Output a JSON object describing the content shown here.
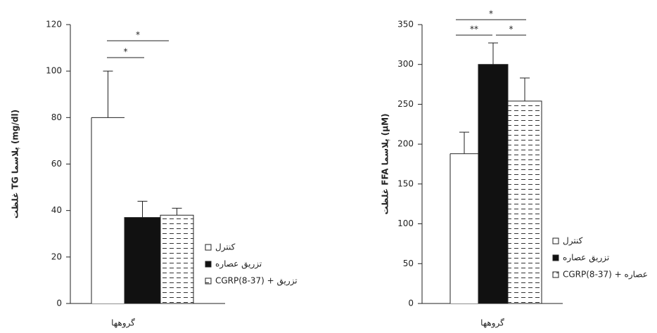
{
  "chart_data": [
    {
      "type": "bar",
      "y_label": "غلظت TG پلاسما (mg/dl)",
      "x_label": "گروهها",
      "categories": [
        null
      ],
      "ylim": [
        0,
        120
      ],
      "yticks": [
        0,
        20,
        40,
        60,
        80,
        100,
        120
      ],
      "series": [
        {
          "name": "کنترل",
          "color": "#ffffff",
          "hatch": false,
          "values": [
            80
          ],
          "errors": [
            20
          ]
        },
        {
          "name": "تزریق عصاره",
          "color": "#111111",
          "hatch": false,
          "values": [
            37
          ],
          "errors": [
            7
          ]
        },
        {
          "name": "CGRP(8-37) + تزریق",
          "color": "#ffffff",
          "hatch": true,
          "values": [
            38
          ],
          "errors": [
            3
          ]
        }
      ],
      "annotations": [
        {
          "text": "*"
        },
        {
          "text": "*"
        }
      ]
    },
    {
      "type": "bar",
      "y_label": "غلظت FFA پلاسما (µM)",
      "x_label": "گروهها",
      "categories": [
        null
      ],
      "ylim": [
        0,
        350
      ],
      "yticks": [
        0,
        50,
        100,
        150,
        200,
        250,
        300,
        350
      ],
      "series": [
        {
          "name": "کنترل",
          "color": "#ffffff",
          "hatch": false,
          "values": [
            188
          ],
          "errors": [
            27
          ]
        },
        {
          "name": "تزریق عصاره",
          "color": "#111111",
          "hatch": false,
          "values": [
            300
          ],
          "errors": [
            27
          ]
        },
        {
          "name": "CGRP(8-37) + عصاره",
          "color": "#ffffff",
          "hatch": true,
          "values": [
            254
          ],
          "errors": [
            29
          ]
        }
      ],
      "annotations": [
        {
          "text": "*"
        },
        {
          "text": "**"
        },
        {
          "text": "*"
        }
      ]
    }
  ]
}
